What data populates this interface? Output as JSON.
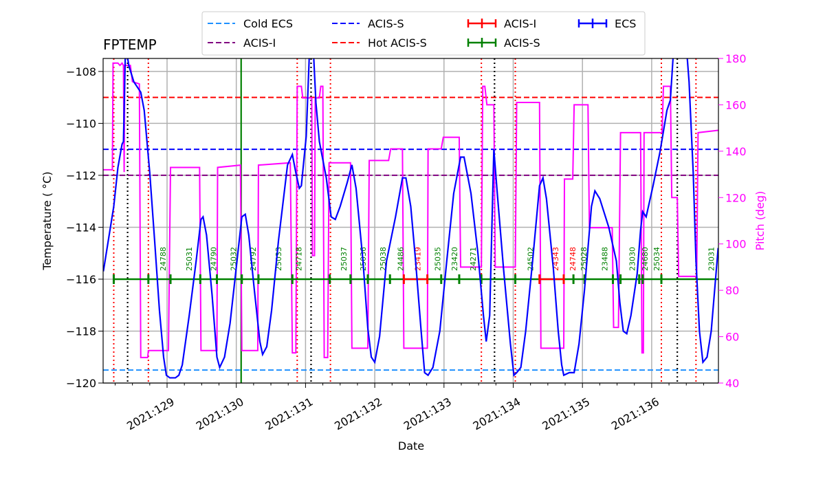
{
  "chart_data": {
    "type": "line",
    "title": "FPTEMP",
    "xlabel": "Date",
    "ylabel": "Temperature ($^\\circ$C)",
    "ylabel_display": "Temperature ( °C)",
    "y2label": "Pitch (deg)",
    "xlim": [
      128.08,
      136.96
    ],
    "ylim": [
      -120,
      -107.5
    ],
    "y2lim": [
      40,
      180
    ],
    "grid": true,
    "legend_placement": "top-center",
    "x_ticks": [
      129,
      130,
      131,
      132,
      133,
      134,
      135,
      136
    ],
    "x_tick_labels": [
      "2021:129",
      "2021:130",
      "2021:131",
      "2021:132",
      "2021:133",
      "2021:134",
      "2021:135",
      "2021:136"
    ],
    "y_ticks": [
      -120,
      -118,
      -116,
      -114,
      -112,
      -110,
      -108
    ],
    "y_tick_labels": [
      "−120",
      "−118",
      "−116",
      "−114",
      "−112",
      "−110",
      "−108"
    ],
    "y2_ticks": [
      40,
      60,
      80,
      100,
      120,
      140,
      160,
      180
    ],
    "y2_tick_labels": [
      "40",
      "60",
      "80",
      "100",
      "120",
      "140",
      "160",
      "180"
    ],
    "colors": {
      "temp": "#0000ff",
      "pitch": "#ff00ff",
      "cold_ecs": "#1e90ff",
      "acis_s_limit": "#0000ff",
      "acis_i_limit": "#800080",
      "hot_acis_s": "#ff0000",
      "acis_i_obs": "#ff0000",
      "acis_s_obs": "#008000",
      "ecs_obs": "#0000ff"
    },
    "legend": [
      {
        "label": "Cold ECS",
        "style": "dashed",
        "color": "#1e90ff"
      },
      {
        "label": "ACIS-S",
        "style": "dashed",
        "color": "#0000ff"
      },
      {
        "label": "ACIS-I",
        "style": "errorbar",
        "color": "#ff0000"
      },
      {
        "label": "ECS",
        "style": "errorbar",
        "color": "#0000ff"
      },
      {
        "label": "ACIS-I",
        "style": "dashed",
        "color": "#800080"
      },
      {
        "label": "Hot ACIS-S",
        "style": "dashed",
        "color": "#ff0000"
      },
      {
        "label": "ACIS-S",
        "style": "errorbar",
        "color": "#008000"
      }
    ],
    "limits": [
      {
        "name": "Cold ECS",
        "value": -119.5,
        "color": "#1e90ff"
      },
      {
        "name": "ACIS-S",
        "value": -111,
        "color": "#0000ff"
      },
      {
        "name": "ACIS-I",
        "value": -112,
        "color": "#800080"
      },
      {
        "name": "Hot ACIS-S",
        "value": -109,
        "color": "#ff0000"
      }
    ],
    "temperature": [
      [
        128.08,
        -115.7
      ],
      [
        128.23,
        -113.2
      ],
      [
        128.29,
        -111.7
      ],
      [
        128.35,
        -110.8
      ],
      [
        128.37,
        -110.7
      ],
      [
        128.4,
        -107.0
      ],
      [
        128.45,
        -107.8
      ],
      [
        128.52,
        -108.4
      ],
      [
        128.62,
        -108.8
      ],
      [
        128.67,
        -109.5
      ],
      [
        128.75,
        -111.9
      ],
      [
        128.82,
        -114.5
      ],
      [
        128.89,
        -117.2
      ],
      [
        128.95,
        -119.0
      ],
      [
        128.99,
        -119.7
      ],
      [
        129.04,
        -119.8
      ],
      [
        129.12,
        -119.8
      ],
      [
        129.17,
        -119.7
      ],
      [
        129.22,
        -119.3
      ],
      [
        129.32,
        -117.4
      ],
      [
        129.42,
        -115.3
      ],
      [
        129.49,
        -113.7
      ],
      [
        129.52,
        -113.6
      ],
      [
        129.57,
        -114.3
      ],
      [
        129.65,
        -116.6
      ],
      [
        129.72,
        -119.0
      ],
      [
        129.76,
        -119.4
      ],
      [
        129.83,
        -119.0
      ],
      [
        129.91,
        -117.7
      ],
      [
        130.01,
        -115.3
      ],
      [
        130.08,
        -113.6
      ],
      [
        130.13,
        -113.5
      ],
      [
        130.18,
        -114.3
      ],
      [
        130.26,
        -116.4
      ],
      [
        130.34,
        -118.4
      ],
      [
        130.38,
        -118.9
      ],
      [
        130.44,
        -118.6
      ],
      [
        130.51,
        -117.2
      ],
      [
        130.61,
        -114.5
      ],
      [
        130.74,
        -111.6
      ],
      [
        130.81,
        -111.2
      ],
      [
        130.86,
        -111.9
      ],
      [
        130.91,
        -112.5
      ],
      [
        130.94,
        -112.4
      ],
      [
        131.01,
        -110.5
      ],
      [
        131.06,
        -107.0
      ],
      [
        131.11,
        -107.0
      ],
      [
        131.15,
        -109.2
      ],
      [
        131.2,
        -110.7
      ],
      [
        131.3,
        -112.1
      ],
      [
        131.37,
        -113.6
      ],
      [
        131.43,
        -113.7
      ],
      [
        131.5,
        -113.2
      ],
      [
        131.6,
        -112.3
      ],
      [
        131.67,
        -111.6
      ],
      [
        131.73,
        -112.5
      ],
      [
        131.83,
        -115.3
      ],
      [
        131.9,
        -117.9
      ],
      [
        131.95,
        -119.0
      ],
      [
        132.0,
        -119.2
      ],
      [
        132.07,
        -118.2
      ],
      [
        132.17,
        -115.3
      ],
      [
        132.3,
        -113.6
      ],
      [
        132.4,
        -112.1
      ],
      [
        132.45,
        -112.1
      ],
      [
        132.52,
        -113.2
      ],
      [
        132.59,
        -115.3
      ],
      [
        132.67,
        -118.0
      ],
      [
        132.72,
        -119.6
      ],
      [
        132.77,
        -119.7
      ],
      [
        132.84,
        -119.4
      ],
      [
        132.94,
        -118.0
      ],
      [
        133.04,
        -115.3
      ],
      [
        133.14,
        -112.7
      ],
      [
        133.24,
        -111.3
      ],
      [
        133.29,
        -111.3
      ],
      [
        133.39,
        -112.7
      ],
      [
        133.49,
        -115.0
      ],
      [
        133.57,
        -117.4
      ],
      [
        133.61,
        -118.4
      ],
      [
        133.66,
        -117.4
      ],
      [
        133.72,
        -111.0
      ],
      [
        133.77,
        -112.7
      ],
      [
        133.86,
        -115.6
      ],
      [
        133.96,
        -118.5
      ],
      [
        134.01,
        -119.7
      ],
      [
        134.05,
        -119.6
      ],
      [
        134.11,
        -119.4
      ],
      [
        134.18,
        -118.0
      ],
      [
        134.28,
        -115.3
      ],
      [
        134.38,
        -112.4
      ],
      [
        134.43,
        -112.1
      ],
      [
        134.48,
        -112.9
      ],
      [
        134.58,
        -115.6
      ],
      [
        134.65,
        -118.0
      ],
      [
        134.7,
        -119.3
      ],
      [
        134.73,
        -119.7
      ],
      [
        134.81,
        -119.6
      ],
      [
        134.88,
        -119.6
      ],
      [
        134.95,
        -118.5
      ],
      [
        135.03,
        -116.4
      ],
      [
        135.13,
        -113.2
      ],
      [
        135.18,
        -112.6
      ],
      [
        135.25,
        -112.9
      ],
      [
        135.38,
        -114.0
      ],
      [
        135.49,
        -115.3
      ],
      [
        135.54,
        -116.9
      ],
      [
        135.59,
        -118.0
      ],
      [
        135.64,
        -118.1
      ],
      [
        135.7,
        -117.4
      ],
      [
        135.79,
        -115.8
      ],
      [
        135.84,
        -114.1
      ],
      [
        135.87,
        -113.4
      ],
      [
        135.92,
        -113.6
      ],
      [
        136.02,
        -112.4
      ],
      [
        136.12,
        -111.1
      ],
      [
        136.22,
        -109.5
      ],
      [
        136.27,
        -109.1
      ],
      [
        136.32,
        -107.0
      ],
      [
        136.5,
        -107.0
      ],
      [
        136.54,
        -108.4
      ],
      [
        136.6,
        -111.9
      ],
      [
        136.64,
        -115.3
      ],
      [
        136.69,
        -118.0
      ],
      [
        136.74,
        -119.2
      ],
      [
        136.8,
        -119.0
      ],
      [
        136.86,
        -118.0
      ],
      [
        136.96,
        -114.8
      ]
    ],
    "pitch": [
      [
        128.08,
        132
      ],
      [
        128.21,
        132
      ],
      [
        128.22,
        178
      ],
      [
        128.29,
        178
      ],
      [
        128.32,
        177
      ],
      [
        128.35,
        178
      ],
      [
        128.37,
        177
      ],
      [
        128.38,
        131
      ],
      [
        128.39,
        177
      ],
      [
        128.47,
        177
      ],
      [
        128.5,
        170
      ],
      [
        128.6,
        169
      ],
      [
        128.62,
        51
      ],
      [
        128.72,
        51
      ],
      [
        128.73,
        54
      ],
      [
        129.02,
        54
      ],
      [
        129.05,
        133
      ],
      [
        129.47,
        133
      ],
      [
        129.49,
        54
      ],
      [
        129.72,
        54
      ],
      [
        129.73,
        133
      ],
      [
        130.06,
        134
      ],
      [
        130.08,
        54
      ],
      [
        130.31,
        54
      ],
      [
        130.32,
        134
      ],
      [
        130.78,
        135
      ],
      [
        130.81,
        53
      ],
      [
        130.86,
        53
      ],
      [
        130.88,
        168
      ],
      [
        130.94,
        168
      ],
      [
        130.96,
        163
      ],
      [
        131.09,
        163
      ],
      [
        131.1,
        95
      ],
      [
        131.13,
        95
      ],
      [
        131.14,
        163
      ],
      [
        131.2,
        163
      ],
      [
        131.22,
        168
      ],
      [
        131.25,
        168
      ],
      [
        131.27,
        51
      ],
      [
        131.32,
        51
      ],
      [
        131.34,
        135
      ],
      [
        131.65,
        135
      ],
      [
        131.67,
        55
      ],
      [
        131.9,
        55
      ],
      [
        131.92,
        136
      ],
      [
        132.2,
        136
      ],
      [
        132.23,
        141
      ],
      [
        132.4,
        141
      ],
      [
        132.42,
        55
      ],
      [
        132.76,
        55
      ],
      [
        132.77,
        141
      ],
      [
        132.96,
        141
      ],
      [
        132.99,
        146
      ],
      [
        133.22,
        146
      ],
      [
        133.24,
        90
      ],
      [
        133.54,
        90
      ],
      [
        133.56,
        168
      ],
      [
        133.59,
        168
      ],
      [
        133.62,
        160
      ],
      [
        133.72,
        160
      ],
      [
        133.74,
        90
      ],
      [
        134.03,
        90
      ],
      [
        134.05,
        161
      ],
      [
        134.38,
        161
      ],
      [
        134.4,
        55
      ],
      [
        134.73,
        55
      ],
      [
        134.74,
        128
      ],
      [
        134.86,
        128
      ],
      [
        134.88,
        160
      ],
      [
        135.08,
        160
      ],
      [
        135.1,
        107
      ],
      [
        135.43,
        107
      ],
      [
        135.45,
        64
      ],
      [
        135.52,
        64
      ],
      [
        135.55,
        148
      ],
      [
        135.84,
        148
      ],
      [
        135.86,
        53
      ],
      [
        135.88,
        53
      ],
      [
        135.89,
        148
      ],
      [
        136.15,
        148
      ],
      [
        136.17,
        168
      ],
      [
        136.27,
        168
      ],
      [
        136.29,
        120
      ],
      [
        136.37,
        120
      ],
      [
        136.39,
        86
      ],
      [
        136.65,
        86
      ],
      [
        136.67,
        148
      ],
      [
        136.96,
        149
      ]
    ],
    "red_dotted_lines": [
      128.23,
      128.73,
      130.88,
      131.36,
      133.54,
      134.03,
      136.14,
      136.64
    ],
    "black_dotted_lines": [
      128.43,
      131.08,
      133.73,
      136.37
    ],
    "green_vertical_line": 130.07,
    "obsid_track_value": -116,
    "obsid_boundaries": [
      128.23,
      128.73,
      129.05,
      129.48,
      129.72,
      130.08,
      130.32,
      130.81,
      131.35,
      131.65,
      131.9,
      132.22,
      132.42,
      132.76,
      132.96,
      133.22,
      133.54,
      134.03,
      134.38,
      134.73,
      134.87,
      135.03,
      135.44,
      135.55,
      135.82,
      135.87,
      136.14
    ],
    "acis_i_intervals": [
      [
        132.42,
        132.76
      ],
      [
        134.38,
        134.73
      ]
    ],
    "obsids": [
      {
        "label": "24788",
        "x": 128.94,
        "instrument": "ACIS-S"
      },
      {
        "label": "25031",
        "x": 129.32,
        "instrument": "ACIS-S"
      },
      {
        "label": "24790",
        "x": 129.67,
        "instrument": "ACIS-S"
      },
      {
        "label": "25032",
        "x": 129.96,
        "instrument": "ACIS-S"
      },
      {
        "label": "24792",
        "x": 130.24,
        "instrument": "ACIS-S"
      },
      {
        "label": "25033",
        "x": 130.61,
        "instrument": "ACIS-S"
      },
      {
        "label": "24718",
        "x": 130.9,
        "instrument": "ACIS-S"
      },
      {
        "label": "25037",
        "x": 131.55,
        "instrument": "ACIS-S"
      },
      {
        "label": "25036",
        "x": 131.83,
        "instrument": "ACIS-S"
      },
      {
        "label": "25038",
        "x": 132.12,
        "instrument": "ACIS-S"
      },
      {
        "label": "24486",
        "x": 132.37,
        "instrument": "ACIS-S"
      },
      {
        "label": "23419",
        "x": 132.62,
        "instrument": "ACIS-I"
      },
      {
        "label": "25035",
        "x": 132.91,
        "instrument": "ACIS-S"
      },
      {
        "label": "23420",
        "x": 133.15,
        "instrument": "ACIS-S"
      },
      {
        "label": "24271",
        "x": 133.42,
        "instrument": "ACIS-S"
      },
      {
        "label": "24502",
        "x": 134.25,
        "instrument": "ACIS-S"
      },
      {
        "label": "24343",
        "x": 134.61,
        "instrument": "ACIS-I"
      },
      {
        "label": "24748",
        "x": 134.86,
        "instrument": "ACIS-I"
      },
      {
        "label": "25028",
        "x": 135.02,
        "instrument": "ACIS-S"
      },
      {
        "label": "23488",
        "x": 135.32,
        "instrument": "ACIS-S"
      },
      {
        "label": "23030",
        "x": 135.72,
        "instrument": "ACIS-S"
      },
      {
        "label": "24680",
        "x": 135.9,
        "instrument": "ACIS-S"
      },
      {
        "label": "25034",
        "x": 136.07,
        "instrument": "ACIS-S"
      },
      {
        "label": "23031",
        "x": 136.86,
        "instrument": "ACIS-S"
      }
    ]
  }
}
